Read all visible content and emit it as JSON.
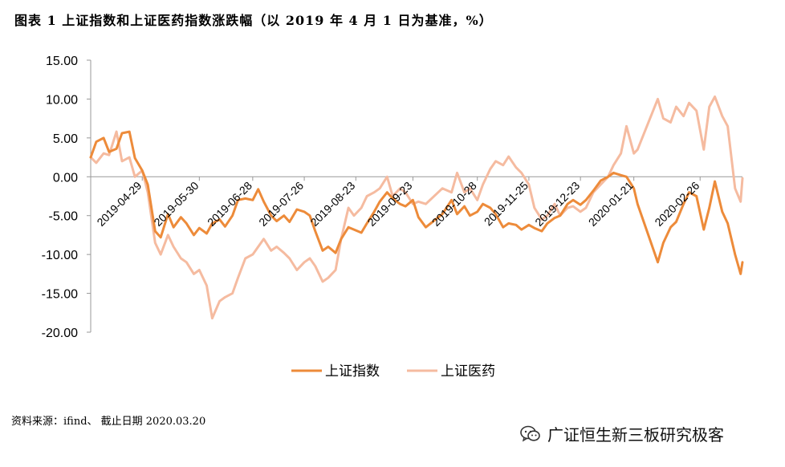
{
  "header": {
    "title": "图表 1 上证指数和上证医药指数涨跌幅（以 2019 年 4 月 1 日为基准，%）"
  },
  "footer": {
    "source": "资料来源：ifind、 截止日期 2020.03.20"
  },
  "watermark": {
    "text": "广证恒生新三板研究极客",
    "icon": "wechat-icon"
  },
  "chart_data": {
    "type": "line",
    "title": "图表 1 上证指数和上证医药指数涨跌幅（以 2019 年 4 月 1 日为基准，%）",
    "ylim": [
      -20,
      15
    ],
    "yticks": [
      "15.00",
      "10.00",
      "5.00",
      "0.00",
      "-5.00",
      "-10.00",
      "-15.00",
      "-20.00"
    ],
    "xlim": [
      "2019-04-01",
      "2020-03-20"
    ],
    "xticks": [
      "2019-04-29",
      "2019-05-30",
      "2019-06-28",
      "2019-07-26",
      "2019-08-23",
      "2019-09-23",
      "2019-10-28",
      "2019-11-25",
      "2019-12-23",
      "2020-01-21",
      "2020-02-26"
    ],
    "legend_position": "bottom",
    "grid": false,
    "series": [
      {
        "name": "上证指数",
        "color": "#ED8B3A",
        "points": [
          [
            "2019-04-01",
            2.5
          ],
          [
            "2019-04-04",
            4.5
          ],
          [
            "2019-04-08",
            5.0
          ],
          [
            "2019-04-11",
            3.2
          ],
          [
            "2019-04-15",
            3.6
          ],
          [
            "2019-04-18",
            5.6
          ],
          [
            "2019-04-22",
            5.8
          ],
          [
            "2019-04-25",
            2.4
          ],
          [
            "2019-04-29",
            0.8
          ],
          [
            "2019-05-02",
            -1.0
          ],
          [
            "2019-05-06",
            -7.0
          ],
          [
            "2019-05-09",
            -7.8
          ],
          [
            "2019-05-13",
            -4.8
          ],
          [
            "2019-05-16",
            -6.5
          ],
          [
            "2019-05-20",
            -5.2
          ],
          [
            "2019-05-23",
            -6.0
          ],
          [
            "2019-05-27",
            -7.5
          ],
          [
            "2019-05-30",
            -6.6
          ],
          [
            "2019-06-03",
            -7.3
          ],
          [
            "2019-06-06",
            -6.0
          ],
          [
            "2019-06-10",
            -5.5
          ],
          [
            "2019-06-13",
            -6.4
          ],
          [
            "2019-06-17",
            -5.0
          ],
          [
            "2019-06-20",
            -3.0
          ],
          [
            "2019-06-24",
            -2.8
          ],
          [
            "2019-06-28",
            -3.0
          ],
          [
            "2019-07-01",
            -1.6
          ],
          [
            "2019-07-04",
            -3.2
          ],
          [
            "2019-07-08",
            -5.0
          ],
          [
            "2019-07-11",
            -5.7
          ],
          [
            "2019-07-15",
            -5.0
          ],
          [
            "2019-07-18",
            -5.8
          ],
          [
            "2019-07-22",
            -4.2
          ],
          [
            "2019-07-26",
            -4.5
          ],
          [
            "2019-07-29",
            -5.0
          ],
          [
            "2019-08-01",
            -7.0
          ],
          [
            "2019-08-05",
            -9.5
          ],
          [
            "2019-08-08",
            -9.0
          ],
          [
            "2019-08-12",
            -9.8
          ],
          [
            "2019-08-15",
            -8.0
          ],
          [
            "2019-08-19",
            -6.5
          ],
          [
            "2019-08-22",
            -6.8
          ],
          [
            "2019-08-26",
            -7.2
          ],
          [
            "2019-08-29",
            -6.0
          ],
          [
            "2019-09-02",
            -4.5
          ],
          [
            "2019-09-05",
            -3.2
          ],
          [
            "2019-09-09",
            -2.0
          ],
          [
            "2019-09-12",
            -2.8
          ],
          [
            "2019-09-16",
            -3.5
          ],
          [
            "2019-09-19",
            -3.8
          ],
          [
            "2019-09-23",
            -3.0
          ],
          [
            "2019-09-26",
            -5.2
          ],
          [
            "2019-09-30",
            -6.5
          ],
          [
            "2019-10-09",
            -4.8
          ],
          [
            "2019-10-14",
            -3.0
          ],
          [
            "2019-10-17",
            -4.8
          ],
          [
            "2019-10-21",
            -3.8
          ],
          [
            "2019-10-24",
            -5.0
          ],
          [
            "2019-10-28",
            -4.5
          ],
          [
            "2019-10-31",
            -3.5
          ],
          [
            "2019-11-04",
            -4.0
          ],
          [
            "2019-11-07",
            -4.8
          ],
          [
            "2019-11-11",
            -6.5
          ],
          [
            "2019-11-14",
            -6.0
          ],
          [
            "2019-11-18",
            -6.2
          ],
          [
            "2019-11-21",
            -6.8
          ],
          [
            "2019-11-25",
            -6.2
          ],
          [
            "2019-11-28",
            -6.6
          ],
          [
            "2019-12-02",
            -7.0
          ],
          [
            "2019-12-05",
            -6.0
          ],
          [
            "2019-12-09",
            -5.3
          ],
          [
            "2019-12-12",
            -5.0
          ],
          [
            "2019-12-16",
            -3.5
          ],
          [
            "2019-12-19",
            -3.0
          ],
          [
            "2019-12-23",
            -3.6
          ],
          [
            "2019-12-26",
            -3.0
          ],
          [
            "2019-12-30",
            -1.8
          ],
          [
            "2020-01-03",
            -0.5
          ],
          [
            "2020-01-07",
            0.0
          ],
          [
            "2020-01-10",
            0.5
          ],
          [
            "2020-01-14",
            0.2
          ],
          [
            "2020-01-17",
            0.0
          ],
          [
            "2020-01-21",
            -1.5
          ],
          [
            "2020-01-23",
            -3.5
          ],
          [
            "2020-02-03",
            -11.0
          ],
          [
            "2020-02-06",
            -8.5
          ],
          [
            "2020-02-10",
            -6.5
          ],
          [
            "2020-02-13",
            -5.8
          ],
          [
            "2020-02-17",
            -3.5
          ],
          [
            "2020-02-20",
            -2.0
          ],
          [
            "2020-02-24",
            -2.5
          ],
          [
            "2020-02-28",
            -6.8
          ],
          [
            "2020-03-02",
            -4.0
          ],
          [
            "2020-03-05",
            -0.6
          ],
          [
            "2020-03-09",
            -4.5
          ],
          [
            "2020-03-12",
            -6.0
          ],
          [
            "2020-03-16",
            -10.0
          ],
          [
            "2020-03-19",
            -12.5
          ],
          [
            "2020-03-20",
            -11.0
          ]
        ]
      },
      {
        "name": "上证医药",
        "color": "#F5BBA0",
        "points": [
          [
            "2019-04-01",
            2.5
          ],
          [
            "2019-04-04",
            1.8
          ],
          [
            "2019-04-08",
            3.0
          ],
          [
            "2019-04-11",
            2.8
          ],
          [
            "2019-04-15",
            5.8
          ],
          [
            "2019-04-18",
            2.0
          ],
          [
            "2019-04-22",
            2.5
          ],
          [
            "2019-04-25",
            0.0
          ],
          [
            "2019-04-29",
            0.8
          ],
          [
            "2019-05-02",
            -2.0
          ],
          [
            "2019-05-06",
            -8.5
          ],
          [
            "2019-05-09",
            -10.0
          ],
          [
            "2019-05-13",
            -7.5
          ],
          [
            "2019-05-16",
            -9.0
          ],
          [
            "2019-05-20",
            -10.5
          ],
          [
            "2019-05-23",
            -11.0
          ],
          [
            "2019-05-27",
            -12.5
          ],
          [
            "2019-05-30",
            -12.0
          ],
          [
            "2019-06-03",
            -14.0
          ],
          [
            "2019-06-06",
            -18.2
          ],
          [
            "2019-06-10",
            -16.0
          ],
          [
            "2019-06-13",
            -15.5
          ],
          [
            "2019-06-17",
            -15.0
          ],
          [
            "2019-06-20",
            -13.0
          ],
          [
            "2019-06-24",
            -10.5
          ],
          [
            "2019-06-28",
            -10.0
          ],
          [
            "2019-07-01",
            -9.0
          ],
          [
            "2019-07-04",
            -8.0
          ],
          [
            "2019-07-08",
            -9.5
          ],
          [
            "2019-07-11",
            -9.0
          ],
          [
            "2019-07-15",
            -9.8
          ],
          [
            "2019-07-18",
            -10.5
          ],
          [
            "2019-07-22",
            -12.0
          ],
          [
            "2019-07-26",
            -11.0
          ],
          [
            "2019-07-29",
            -10.5
          ],
          [
            "2019-08-01",
            -11.5
          ],
          [
            "2019-08-05",
            -13.5
          ],
          [
            "2019-08-08",
            -13.0
          ],
          [
            "2019-08-12",
            -12.0
          ],
          [
            "2019-08-15",
            -8.0
          ],
          [
            "2019-08-19",
            -4.0
          ],
          [
            "2019-08-22",
            -5.0
          ],
          [
            "2019-08-26",
            -4.0
          ],
          [
            "2019-08-29",
            -2.5
          ],
          [
            "2019-09-02",
            -2.0
          ],
          [
            "2019-09-05",
            -1.5
          ],
          [
            "2019-09-09",
            0.0
          ],
          [
            "2019-09-12",
            -2.5
          ],
          [
            "2019-09-16",
            -1.5
          ],
          [
            "2019-09-19",
            -2.0
          ],
          [
            "2019-09-23",
            -3.5
          ],
          [
            "2019-09-26",
            -3.2
          ],
          [
            "2019-09-30",
            -3.5
          ],
          [
            "2019-10-09",
            -1.5
          ],
          [
            "2019-10-14",
            -2.0
          ],
          [
            "2019-10-17",
            0.5
          ],
          [
            "2019-10-21",
            -2.0
          ],
          [
            "2019-10-24",
            -1.5
          ],
          [
            "2019-10-28",
            -3.0
          ],
          [
            "2019-10-31",
            -1.0
          ],
          [
            "2019-11-04",
            1.0
          ],
          [
            "2019-11-07",
            2.0
          ],
          [
            "2019-11-11",
            1.5
          ],
          [
            "2019-11-14",
            2.6
          ],
          [
            "2019-11-18",
            1.2
          ],
          [
            "2019-11-21",
            0.5
          ],
          [
            "2019-11-25",
            -1.0
          ],
          [
            "2019-11-28",
            -4.0
          ],
          [
            "2019-12-02",
            -5.5
          ],
          [
            "2019-12-05",
            -5.0
          ],
          [
            "2019-12-09",
            -3.5
          ],
          [
            "2019-12-12",
            -5.0
          ],
          [
            "2019-12-16",
            -4.0
          ],
          [
            "2019-12-19",
            -3.8
          ],
          [
            "2019-12-23",
            -4.5
          ],
          [
            "2019-12-26",
            -4.0
          ],
          [
            "2019-12-30",
            -2.0
          ],
          [
            "2020-01-03",
            -1.0
          ],
          [
            "2020-01-07",
            0.0
          ],
          [
            "2020-01-10",
            1.5
          ],
          [
            "2020-01-14",
            3.0
          ],
          [
            "2020-01-17",
            6.5
          ],
          [
            "2020-01-21",
            3.0
          ],
          [
            "2020-01-23",
            3.5
          ],
          [
            "2020-02-03",
            10.0
          ],
          [
            "2020-02-06",
            7.5
          ],
          [
            "2020-02-10",
            7.0
          ],
          [
            "2020-02-13",
            9.0
          ],
          [
            "2020-02-17",
            7.8
          ],
          [
            "2020-02-20",
            9.5
          ],
          [
            "2020-02-24",
            8.5
          ],
          [
            "2020-02-28",
            3.5
          ],
          [
            "2020-03-02",
            9.0
          ],
          [
            "2020-03-05",
            10.3
          ],
          [
            "2020-03-09",
            7.8
          ],
          [
            "2020-03-12",
            6.5
          ],
          [
            "2020-03-16",
            -1.5
          ],
          [
            "2020-03-19",
            -3.2
          ],
          [
            "2020-03-20",
            -0.2
          ]
        ]
      }
    ]
  }
}
